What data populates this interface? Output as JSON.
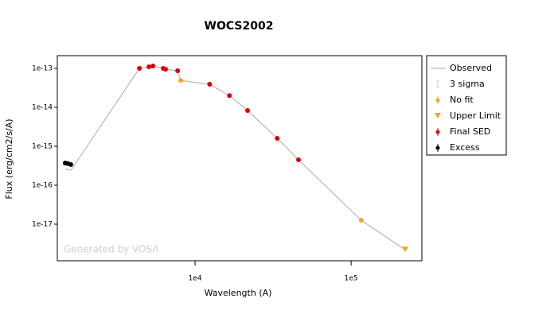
{
  "chart_data": {
    "type": "scatter",
    "title": "WOCS2002",
    "x_label": "Wavelength (A)",
    "y_label": "Flux (erg/cm2/s/A)",
    "watermark": "Generated by VOSA",
    "xscale": "log",
    "yscale": "log",
    "xlim": [
      1310,
      284000
    ],
    "ylim": [
      1.15e-18,
      2.12e-13
    ],
    "xticks": [
      {
        "value": 10000,
        "label": "1e4"
      },
      {
        "value": 100000,
        "label": "1e5"
      }
    ],
    "yticks": [
      {
        "value": 1e-13,
        "label": "1e-13"
      },
      {
        "value": 1e-14,
        "label": "1e-14"
      },
      {
        "value": 1e-15,
        "label": "1e-15"
      },
      {
        "value": 1e-16,
        "label": "1e-16"
      },
      {
        "value": 1e-17,
        "label": "1e-17"
      }
    ],
    "legend": "outside-right",
    "series": [
      {
        "name": "Observed",
        "color": "#aaaaaa",
        "marker": "line",
        "x": [
          1472,
          1600,
          4400,
          5060,
          5370,
          6250,
          6470,
          7730,
          8090,
          12400,
          16600,
          21700,
          33600,
          46000,
          116000,
          222000
        ],
        "y": [
          2.6e-16,
          2.4e-16,
          1e-13,
          1.1e-13,
          1.15e-13,
          1e-13,
          9.5e-14,
          8.7e-14,
          4.9e-14,
          3.9e-14,
          2e-14,
          8.3e-15,
          1.6e-15,
          4.5e-16,
          1.26e-17,
          2.2e-18
        ]
      },
      {
        "name": "3 sigma",
        "color": "#cccccc",
        "marker": "errorbar",
        "x": [],
        "y": []
      },
      {
        "name": "No fit",
        "color": "#f5a623",
        "marker": "circle",
        "x": [
          8090,
          116000
        ],
        "y": [
          4.9e-14,
          1.26e-17
        ]
      },
      {
        "name": "Upper Limit",
        "color": "#f5a623",
        "marker": "triangle",
        "x": [
          222000
        ],
        "y": [
          2.2e-18
        ]
      },
      {
        "name": "Final SED",
        "color": "#e00000",
        "marker": "circle",
        "x": [
          4400,
          5060,
          5370,
          6250,
          6470,
          7730,
          12400,
          16600,
          21700,
          33600,
          46000
        ],
        "y": [
          1e-13,
          1.1e-13,
          1.15e-13,
          1e-13,
          9.5e-14,
          8.7e-14,
          3.9e-14,
          2e-14,
          8.3e-15,
          1.6e-15,
          4.5e-16
        ]
      },
      {
        "name": "Excess",
        "color": "#000000",
        "marker": "circle",
        "x": [
          1472,
          1528,
          1600
        ],
        "y": [
          3.7e-16,
          3.6e-16,
          3.4e-16
        ]
      }
    ]
  }
}
